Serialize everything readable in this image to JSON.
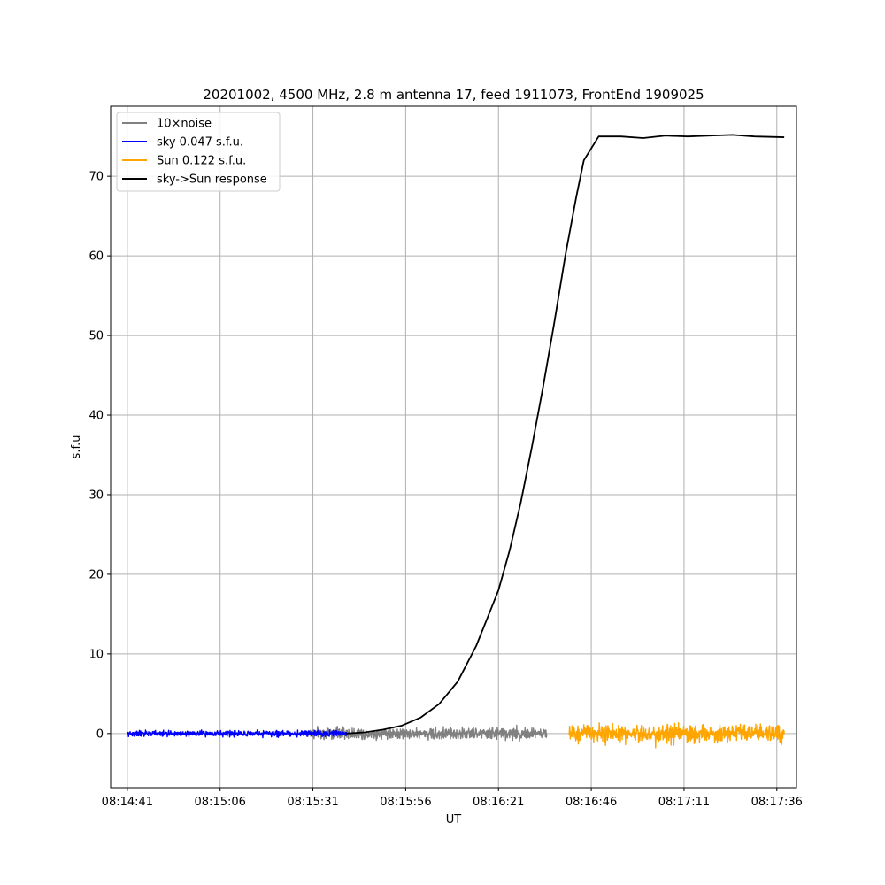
{
  "chart_data": {
    "type": "line",
    "title": "20201002, 4500 MHz, 2.8 m antenna 17, feed 1911073, FrontEnd 1909025",
    "xlabel": "UT",
    "ylabel": "s.f.u",
    "xlim": [
      "08:14:36.5",
      "08:17:41.3"
    ],
    "ylim": [
      -6.8,
      78.8
    ],
    "x_ticks": [
      "08:14:41",
      "08:15:06",
      "08:15:31",
      "08:15:56",
      "08:16:21",
      "08:16:46",
      "08:17:11",
      "08:17:36"
    ],
    "y_ticks": [
      0,
      10,
      20,
      30,
      40,
      50,
      60,
      70
    ],
    "grid": true,
    "legend_position": "top-left",
    "legend": [
      "10×noise",
      "sky 0.047 s.f.u.",
      "Sun 0.122 s.f.u.",
      "sky->Sun response"
    ],
    "series": [
      {
        "name": "10×noise",
        "color": "#808080",
        "kind": "noise",
        "x_start": "08:15:30",
        "x_end": "08:16:34",
        "approx_amplitude": 1.2
      },
      {
        "name": "sky 0.047 s.f.u.",
        "color": "#0000ff",
        "kind": "noise",
        "x_start": "08:14:41",
        "x_end": "08:15:40",
        "approx_amplitude": 0.6
      },
      {
        "name": "Sun 0.122 s.f.u.",
        "color": "#ffa500",
        "kind": "noise",
        "x_start": "08:16:40",
        "x_end": "08:17:38",
        "approx_amplitude": 1.8
      },
      {
        "name": "sky->Sun response",
        "color": "#000000",
        "kind": "line",
        "points": [
          [
            "08:15:40",
            0.0
          ],
          [
            "08:15:45",
            0.15
          ],
          [
            "08:15:50",
            0.5
          ],
          [
            "08:15:55",
            1.0
          ],
          [
            "08:16:00",
            2.0
          ],
          [
            "08:16:05",
            3.7
          ],
          [
            "08:16:10",
            6.5
          ],
          [
            "08:16:15",
            11.0
          ],
          [
            "08:16:18",
            14.5
          ],
          [
            "08:16:21",
            18.0
          ],
          [
            "08:16:24",
            23.0
          ],
          [
            "08:16:27",
            29.0
          ],
          [
            "08:16:30",
            36.0
          ],
          [
            "08:16:33",
            43.5
          ],
          [
            "08:16:36",
            51.5
          ],
          [
            "08:16:39",
            60.0
          ],
          [
            "08:16:42",
            67.5
          ],
          [
            "08:16:44",
            72.0
          ],
          [
            "08:16:48",
            75.0
          ],
          [
            "08:16:54",
            75.0
          ],
          [
            "08:17:00",
            74.8
          ],
          [
            "08:17:06",
            75.1
          ],
          [
            "08:17:12",
            75.0
          ],
          [
            "08:17:18",
            75.1
          ],
          [
            "08:17:24",
            75.2
          ],
          [
            "08:17:30",
            75.0
          ],
          [
            "08:17:38",
            74.9
          ]
        ]
      }
    ]
  }
}
